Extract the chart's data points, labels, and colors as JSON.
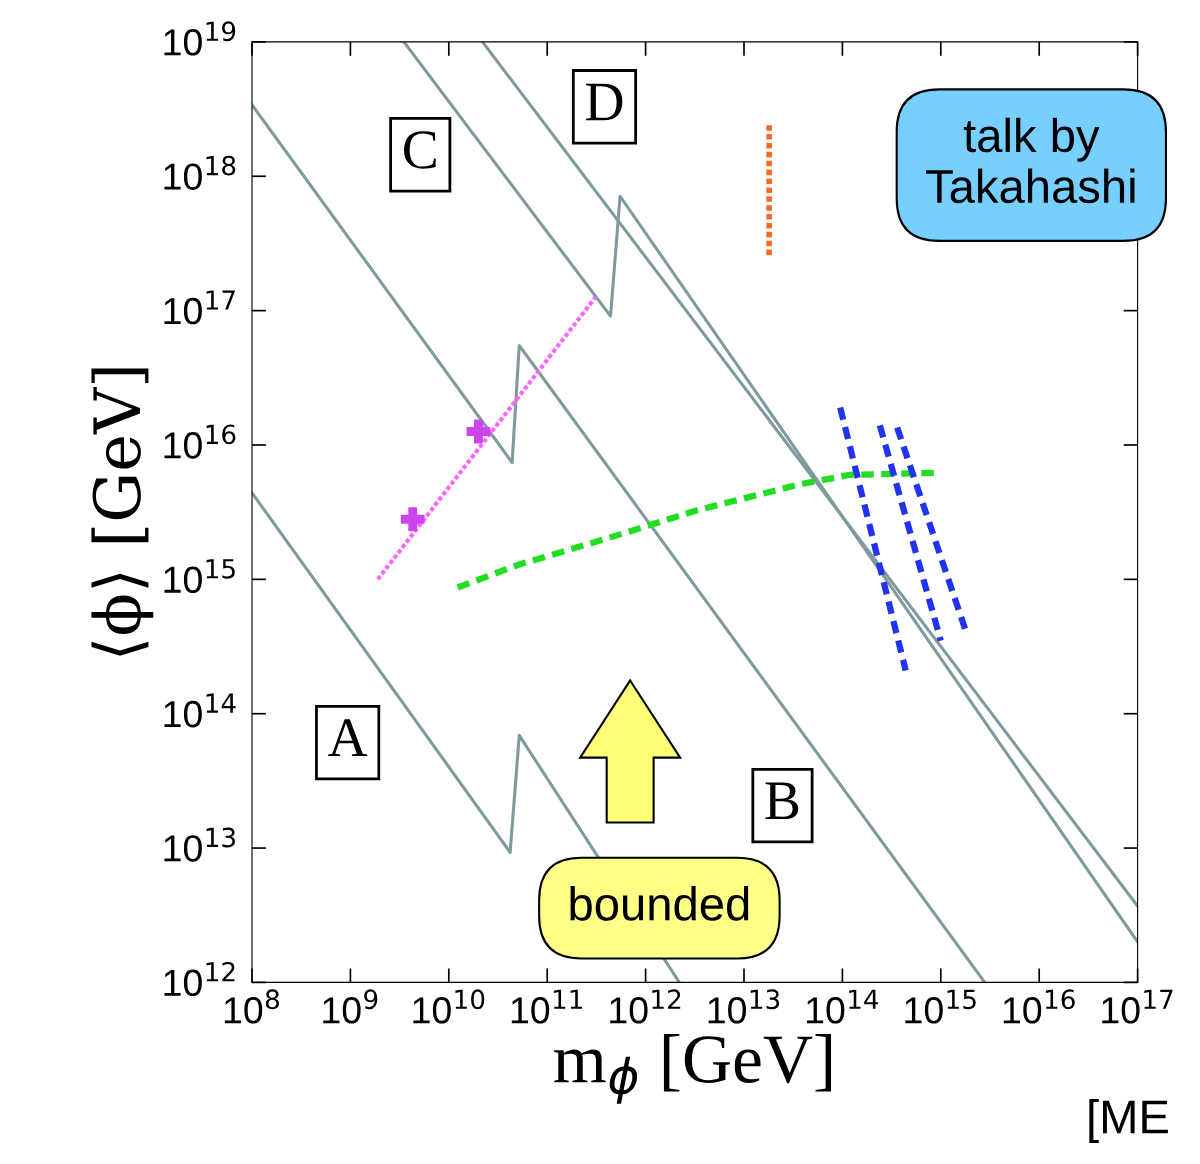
{
  "chart_data": {
    "type": "line",
    "xlabel": "m$_{ϕ}$ [GeV]",
    "ylabel": "⟨ϕ⟩ [GeV]",
    "log": "xy",
    "grid": false,
    "xlim": [
      100000000.0,
      1e+17
    ],
    "ylim": [
      1000000000000.0,
      1e+19
    ],
    "xticks": [
      {
        "value": 100000000.0,
        "label": "10$^{8}$"
      },
      {
        "value": 1000000000.0,
        "label": "10$^{9}$"
      },
      {
        "value": 10000000000.0,
        "label": "10$^{10}$"
      },
      {
        "value": 100000000000.0,
        "label": "10$^{11}$"
      },
      {
        "value": 1000000000000.0,
        "label": "10$^{12}$"
      },
      {
        "value": 10000000000000.0,
        "label": "10$^{13}$"
      },
      {
        "value": 100000000000000.0,
        "label": "10$^{14}$"
      },
      {
        "value": 1000000000000000.0,
        "label": "10$^{15}$"
      },
      {
        "value": 1e+16,
        "label": "10$^{16}$"
      },
      {
        "value": 1e+17,
        "label": "10$^{17}$"
      }
    ],
    "yticks": [
      {
        "value": 1000000000000.0,
        "label": "10$^{12}$"
      },
      {
        "value": 10000000000000.0,
        "label": "10$^{13}$"
      },
      {
        "value": 100000000000000.0,
        "label": "10$^{14}$"
      },
      {
        "value": 1000000000000000.0,
        "label": "10$^{15}$"
      },
      {
        "value": 1e+16,
        "label": "10$^{16}$"
      },
      {
        "value": 1e+17,
        "label": "10$^{17}$"
      },
      {
        "value": 1e+18,
        "label": "10$^{18}$"
      },
      {
        "value": 1e+19,
        "label": "10$^{19}$"
      }
    ],
    "series": [
      {
        "color": "#7f9a9e",
        "line_style": "solid",
        "x": [
          100000000.0,
          42000000000.0,
          52000000000.0,
          2200000000000.0
        ],
        "values": [
          4400000000000000.0,
          9300000000000.0,
          69000000000000.0,
          1000000000000.0
        ]
      },
      {
        "color": "#7f9a9e",
        "line_style": "solid",
        "x": [
          100000000.0,
          44000000000.0,
          52000000000.0,
          2800000000000000.0
        ],
        "values": [
          3.4e+18,
          7400000000000000.0,
          5.5e+16,
          1000000000000.0
        ]
      },
      {
        "color": "#7f9a9e",
        "line_style": "solid",
        "x": [
          3500000000.0,
          440000000000.0,
          550000000000.0,
          1e+17
        ],
        "values": [
          1e+19,
          9.1e+16,
          7.1e+17,
          2000000000000.0
        ]
      },
      {
        "color": "#7f9a9e",
        "line_style": "solid",
        "x": [
          22000000000.0,
          1e+17
        ],
        "values": [
          1e+19,
          3700000000000.0
        ]
      },
      {
        "color": "#ff6622",
        "line_style": "dotted",
        "x": [
          18000000000000.0,
          18000000000000.0
        ],
        "values": [
          2.4e+18,
          2.5e+17
        ]
      },
      {
        "color": "#ff66ff",
        "line_style": "dotted",
        "x": [
          1900000000.0,
          310000000000.0
        ],
        "values": [
          1000000000000000.0,
          1.26e+17
        ]
      },
      {
        "type": "scatter",
        "color": "#cc44ee",
        "marker": "cross",
        "x": [
          4300000000.0,
          20000000000.0
        ],
        "values": [
          2800000000000000.0,
          1.26e+16
        ]
      },
      {
        "color": "#22dd22",
        "line_style": "dashed",
        "x": [
          12300000000.0,
          52000000000.0,
          350000000000.0,
          3500000000000.0,
          37000000000000.0,
          120000000000000.0,
          870000000000000.0
        ],
        "values": [
          870000000000000.0,
          1290000000000000.0,
          1950000000000000.0,
          3300000000000000.0,
          5100000000000000.0,
          6000000000000000.0,
          6200000000000000.0
        ]
      },
      {
        "color": "#2233ee",
        "line_style": "dashed",
        "x": [
          95000000000000.0,
          440000000000000.0
        ],
        "values": [
          1.9e+16,
          210000000000000.0
        ]
      },
      {
        "color": "#2233ee",
        "line_style": "dashed",
        "x": [
          240000000000000.0,
          1000000000000000.0
        ],
        "values": [
          1.4e+16,
          350000000000000.0
        ]
      },
      {
        "color": "#2233ee",
        "line_style": "dashed",
        "x": [
          360000000000000.0,
          1800000000000000.0
        ],
        "values": [
          1.35e+16,
          410000000000000.0
        ]
      }
    ],
    "annotations": [
      "A",
      "B",
      "C",
      "D",
      "talk by\nTakahashi",
      "bounded",
      "[ME"
    ]
  }
}
